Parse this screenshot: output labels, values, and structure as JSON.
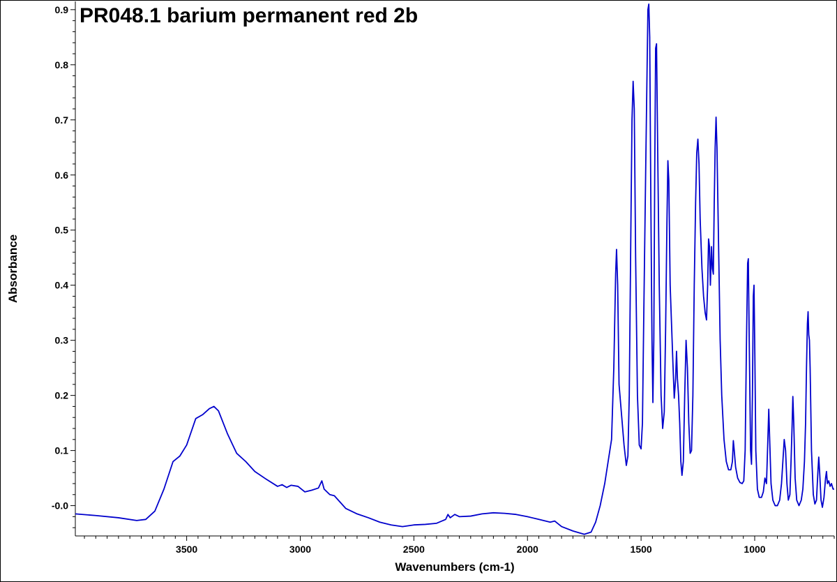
{
  "chart_data": {
    "type": "line",
    "title": "PR048.1 barium permanent red 2b",
    "xlabel": "Wavenumbers (cm-1)",
    "ylabel": "Absorbance",
    "xlim": [
      3990,
      650
    ],
    "ylim": [
      -0.055,
      0.915
    ],
    "x_reversed": true,
    "grid": false,
    "xticks": [
      3500,
      3000,
      2500,
      2000,
      1500,
      1000
    ],
    "yticks": [
      -0.0,
      0.1,
      0.2,
      0.3,
      0.4,
      0.5,
      0.6,
      0.7,
      0.8,
      0.9
    ],
    "ytick_labels": [
      "-0.0",
      "0.1",
      "0.2",
      "0.3",
      "0.4",
      "0.5",
      "0.6",
      "0.7",
      "0.8",
      "0.9"
    ],
    "line_color": "#0000cc",
    "series": [
      {
        "points": [
          [
            3990,
            -0.015
          ],
          [
            3900,
            -0.018
          ],
          [
            3800,
            -0.022
          ],
          [
            3720,
            -0.027
          ],
          [
            3680,
            -0.025
          ],
          [
            3640,
            -0.01
          ],
          [
            3600,
            0.03
          ],
          [
            3560,
            0.08
          ],
          [
            3530,
            0.09
          ],
          [
            3500,
            0.11
          ],
          [
            3460,
            0.158
          ],
          [
            3430,
            0.165
          ],
          [
            3400,
            0.176
          ],
          [
            3380,
            0.18
          ],
          [
            3360,
            0.172
          ],
          [
            3320,
            0.13
          ],
          [
            3280,
            0.095
          ],
          [
            3240,
            0.08
          ],
          [
            3200,
            0.062
          ],
          [
            3150,
            0.048
          ],
          [
            3100,
            0.035
          ],
          [
            3080,
            0.038
          ],
          [
            3060,
            0.033
          ],
          [
            3040,
            0.037
          ],
          [
            3010,
            0.035
          ],
          [
            2980,
            0.025
          ],
          [
            2950,
            0.028
          ],
          [
            2920,
            0.032
          ],
          [
            2905,
            0.045
          ],
          [
            2895,
            0.03
          ],
          [
            2870,
            0.02
          ],
          [
            2850,
            0.018
          ],
          [
            2800,
            -0.005
          ],
          [
            2750,
            -0.015
          ],
          [
            2700,
            -0.022
          ],
          [
            2650,
            -0.03
          ],
          [
            2600,
            -0.035
          ],
          [
            2550,
            -0.038
          ],
          [
            2500,
            -0.035
          ],
          [
            2450,
            -0.034
          ],
          [
            2400,
            -0.032
          ],
          [
            2360,
            -0.025
          ],
          [
            2350,
            -0.016
          ],
          [
            2340,
            -0.022
          ],
          [
            2320,
            -0.016
          ],
          [
            2300,
            -0.02
          ],
          [
            2250,
            -0.019
          ],
          [
            2200,
            -0.015
          ],
          [
            2150,
            -0.013
          ],
          [
            2100,
            -0.014
          ],
          [
            2050,
            -0.016
          ],
          [
            2000,
            -0.02
          ],
          [
            1950,
            -0.025
          ],
          [
            1900,
            -0.03
          ],
          [
            1880,
            -0.028
          ],
          [
            1850,
            -0.038
          ],
          [
            1800,
            -0.046
          ],
          [
            1750,
            -0.052
          ],
          [
            1720,
            -0.048
          ],
          [
            1700,
            -0.03
          ],
          [
            1680,
            0.0
          ],
          [
            1660,
            0.04
          ],
          [
            1645,
            0.08
          ],
          [
            1630,
            0.12
          ],
          [
            1620,
            0.25
          ],
          [
            1612,
            0.42
          ],
          [
            1608,
            0.465
          ],
          [
            1603,
            0.4
          ],
          [
            1597,
            0.22
          ],
          [
            1585,
            0.16
          ],
          [
            1575,
            0.11
          ],
          [
            1565,
            0.073
          ],
          [
            1558,
            0.09
          ],
          [
            1552,
            0.2
          ],
          [
            1545,
            0.5
          ],
          [
            1540,
            0.7
          ],
          [
            1535,
            0.77
          ],
          [
            1530,
            0.72
          ],
          [
            1524,
            0.45
          ],
          [
            1516,
            0.2
          ],
          [
            1508,
            0.11
          ],
          [
            1500,
            0.103
          ],
          [
            1494,
            0.15
          ],
          [
            1488,
            0.35
          ],
          [
            1480,
            0.6
          ],
          [
            1474,
            0.78
          ],
          [
            1470,
            0.9
          ],
          [
            1466,
            0.91
          ],
          [
            1462,
            0.85
          ],
          [
            1457,
            0.55
          ],
          [
            1452,
            0.3
          ],
          [
            1448,
            0.187
          ],
          [
            1444,
            0.3
          ],
          [
            1440,
            0.6
          ],
          [
            1436,
            0.83
          ],
          [
            1432,
            0.838
          ],
          [
            1427,
            0.65
          ],
          [
            1420,
            0.4
          ],
          [
            1412,
            0.2
          ],
          [
            1405,
            0.14
          ],
          [
            1398,
            0.17
          ],
          [
            1392,
            0.32
          ],
          [
            1386,
            0.52
          ],
          [
            1382,
            0.626
          ],
          [
            1378,
            0.59
          ],
          [
            1372,
            0.4
          ],
          [
            1366,
            0.33
          ],
          [
            1360,
            0.26
          ],
          [
            1354,
            0.195
          ],
          [
            1348,
            0.23
          ],
          [
            1344,
            0.28
          ],
          [
            1340,
            0.23
          ],
          [
            1335,
            0.2
          ],
          [
            1330,
            0.15
          ],
          [
            1325,
            0.08
          ],
          [
            1320,
            0.055
          ],
          [
            1314,
            0.08
          ],
          [
            1308,
            0.2
          ],
          [
            1302,
            0.3
          ],
          [
            1296,
            0.25
          ],
          [
            1290,
            0.15
          ],
          [
            1284,
            0.095
          ],
          [
            1278,
            0.1
          ],
          [
            1272,
            0.2
          ],
          [
            1266,
            0.4
          ],
          [
            1260,
            0.55
          ],
          [
            1255,
            0.64
          ],
          [
            1250,
            0.665
          ],
          [
            1245,
            0.62
          ],
          [
            1240,
            0.52
          ],
          [
            1232,
            0.43
          ],
          [
            1225,
            0.38
          ],
          [
            1218,
            0.35
          ],
          [
            1212,
            0.337
          ],
          [
            1207,
            0.4
          ],
          [
            1203,
            0.484
          ],
          [
            1199,
            0.47
          ],
          [
            1195,
            0.4
          ],
          [
            1190,
            0.47
          ],
          [
            1186,
            0.43
          ],
          [
            1182,
            0.42
          ],
          [
            1178,
            0.55
          ],
          [
            1174,
            0.65
          ],
          [
            1170,
            0.705
          ],
          [
            1166,
            0.65
          ],
          [
            1160,
            0.5
          ],
          [
            1152,
            0.3
          ],
          [
            1145,
            0.2
          ],
          [
            1135,
            0.12
          ],
          [
            1125,
            0.08
          ],
          [
            1115,
            0.065
          ],
          [
            1105,
            0.065
          ],
          [
            1098,
            0.08
          ],
          [
            1094,
            0.118
          ],
          [
            1090,
            0.1
          ],
          [
            1084,
            0.07
          ],
          [
            1075,
            0.05
          ],
          [
            1065,
            0.042
          ],
          [
            1055,
            0.04
          ],
          [
            1048,
            0.045
          ],
          [
            1042,
            0.1
          ],
          [
            1036,
            0.3
          ],
          [
            1031,
            0.44
          ],
          [
            1028,
            0.448
          ],
          [
            1024,
            0.3
          ],
          [
            1018,
            0.1
          ],
          [
            1014,
            0.075
          ],
          [
            1010,
            0.2
          ],
          [
            1006,
            0.38
          ],
          [
            1003,
            0.4
          ],
          [
            1000,
            0.3
          ],
          [
            995,
            0.1
          ],
          [
            988,
            0.03
          ],
          [
            980,
            0.015
          ],
          [
            970,
            0.015
          ],
          [
            962,
            0.025
          ],
          [
            955,
            0.05
          ],
          [
            948,
            0.04
          ],
          [
            942,
            0.12
          ],
          [
            938,
            0.175
          ],
          [
            934,
            0.12
          ],
          [
            928,
            0.04
          ],
          [
            920,
            0.01
          ],
          [
            910,
            0.0
          ],
          [
            900,
            0.0
          ],
          [
            890,
            0.01
          ],
          [
            882,
            0.04
          ],
          [
            876,
            0.08
          ],
          [
            870,
            0.12
          ],
          [
            864,
            0.1
          ],
          [
            858,
            0.04
          ],
          [
            852,
            0.01
          ],
          [
            845,
            0.02
          ],
          [
            840,
            0.08
          ],
          [
            835,
            0.15
          ],
          [
            832,
            0.198
          ],
          [
            828,
            0.15
          ],
          [
            822,
            0.05
          ],
          [
            815,
            0.01
          ],
          [
            805,
            0.0
          ],
          [
            795,
            0.01
          ],
          [
            788,
            0.03
          ],
          [
            781,
            0.08
          ],
          [
            776,
            0.15
          ],
          [
            772,
            0.25
          ],
          [
            768,
            0.33
          ],
          [
            765,
            0.352
          ],
          [
            762,
            0.31
          ],
          [
            759,
            0.3
          ],
          [
            756,
            0.25
          ],
          [
            750,
            0.1
          ],
          [
            742,
            0.02
          ],
          [
            735,
            0.003
          ],
          [
            728,
            0.01
          ],
          [
            722,
            0.06
          ],
          [
            718,
            0.088
          ],
          [
            714,
            0.06
          ],
          [
            708,
            0.01
          ],
          [
            702,
            -0.003
          ],
          [
            695,
            0.015
          ],
          [
            688,
            0.05
          ],
          [
            684,
            0.062
          ],
          [
            680,
            0.04
          ],
          [
            674,
            0.045
          ],
          [
            668,
            0.035
          ],
          [
            662,
            0.04
          ],
          [
            655,
            0.03
          ],
          [
            650,
            0.03
          ]
        ]
      }
    ]
  }
}
